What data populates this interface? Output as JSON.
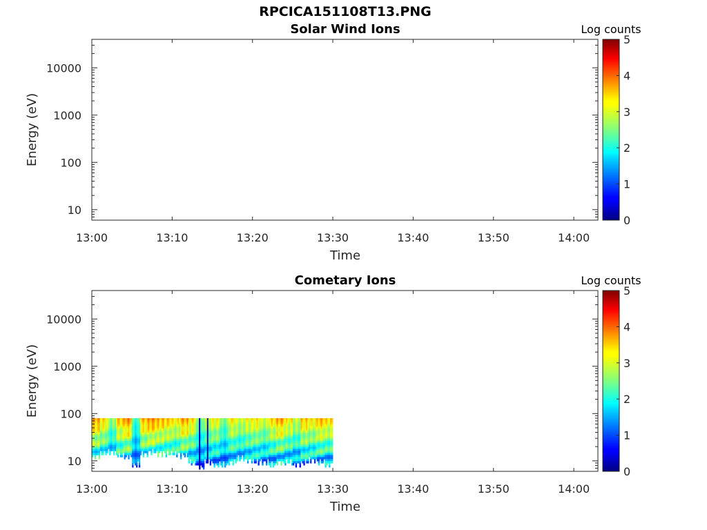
{
  "figure": {
    "title": "RPCICA151108T13.PNG"
  },
  "chart_data": [
    {
      "type": "heatmap",
      "title": "Solar Wind Ions",
      "xlabel": "Time",
      "ylabel": "Energy (eV)",
      "x_ticks": [
        "13:00",
        "13:10",
        "13:20",
        "13:30",
        "13:40",
        "13:50",
        "14:00"
      ],
      "xlim": [
        "13:00",
        "14:03"
      ],
      "y_ticks": [
        "10",
        "100",
        "1000",
        "10000"
      ],
      "ylim": [
        6,
        40000
      ],
      "y_scale": "log",
      "colorbar": {
        "label": "Log counts",
        "ticks": [
          "0",
          "1",
          "2",
          "3",
          "4",
          "5"
        ],
        "range": [
          0,
          5
        ],
        "colormap": "jet"
      },
      "data": []
    },
    {
      "type": "heatmap",
      "title": "Cometary Ions",
      "xlabel": "Time",
      "ylabel": "Energy (eV)",
      "x_ticks": [
        "13:00",
        "13:10",
        "13:20",
        "13:30",
        "13:40",
        "13:50",
        "14:00"
      ],
      "xlim": [
        "13:00",
        "14:03"
      ],
      "y_ticks": [
        "10",
        "100",
        "1000",
        "10000"
      ],
      "ylim": [
        6,
        40000
      ],
      "y_scale": "log",
      "colorbar": {
        "label": "Log counts",
        "ticks": [
          "0",
          "1",
          "2",
          "3",
          "4",
          "5"
        ],
        "range": [
          0,
          5
        ],
        "colormap": "jet"
      },
      "data_extent": {
        "time_start": "13:00",
        "time_end": "13:30",
        "energy_min_ev": 6,
        "energy_max_ev": 80
      },
      "gaps": [
        "13:13",
        "13:14"
      ],
      "profile": {
        "times": [
          "13:00",
          "13:01",
          "13:02",
          "13:03",
          "13:04",
          "13:05",
          "13:06",
          "13:07",
          "13:08",
          "13:09",
          "13:10",
          "13:11",
          "13:12",
          "13:13",
          "13:14",
          "13:15",
          "13:16",
          "13:17",
          "13:18",
          "13:19",
          "13:20",
          "13:21",
          "13:22",
          "13:23",
          "13:24",
          "13:25",
          "13:26",
          "13:27",
          "13:28",
          "13:29"
        ],
        "peak_log_counts": [
          3.6,
          3.3,
          2.6,
          3.4,
          3.7,
          2.2,
          3.5,
          3.7,
          3.5,
          3.4,
          3.2,
          3.6,
          3.3,
          2.4,
          3.0,
          3.1,
          2.5,
          3.2,
          2.9,
          3.1,
          3.2,
          2.9,
          3.3,
          3.6,
          3.2,
          2.9,
          3.4,
          3.2,
          3.5,
          3.3
        ],
        "low_energy_cutoff_ev": [
          12,
          14,
          15,
          13,
          12,
          8,
          14,
          15,
          14,
          14,
          14,
          13,
          9,
          7,
          9,
          8,
          8,
          9,
          11,
          10,
          9,
          9,
          8,
          9,
          9,
          8,
          9,
          10,
          9,
          8
        ]
      }
    }
  ]
}
